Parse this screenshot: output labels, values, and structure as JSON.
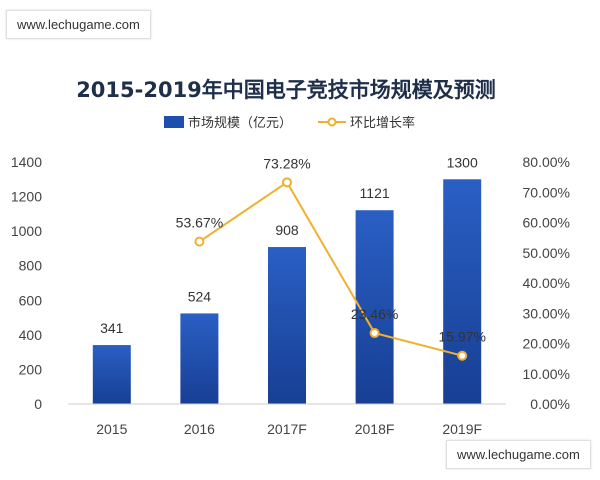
{
  "watermark_top": "www.lechugame.com",
  "watermark_bottom": "www.lechugame.com",
  "chart_data": {
    "type": "bar",
    "title": "2015-2019年中国电子竞技市场规模及预测",
    "categories": [
      "2015",
      "2016",
      "2017F",
      "2018F",
      "2019F"
    ],
    "series": [
      {
        "name": "市场规模（亿元）",
        "type": "bar",
        "axis": "left",
        "values": [
          341,
          524,
          908,
          1121,
          1300
        ],
        "labels": [
          "341",
          "524",
          "908",
          "1121",
          "1300"
        ],
        "color": "#1f4fae"
      },
      {
        "name": "环比增长率",
        "type": "line",
        "axis": "right",
        "values": [
          null,
          53.67,
          73.28,
          23.46,
          15.97
        ],
        "labels": [
          "",
          "53.67%",
          "73.28%",
          "23.46%",
          "15.97%"
        ],
        "color": "#f0b030"
      }
    ],
    "y_left": {
      "min": 0,
      "max": 1400,
      "ticks": [
        "0",
        "200",
        "400",
        "600",
        "800",
        "1000",
        "1200",
        "1400"
      ]
    },
    "y_right": {
      "min": 0,
      "max": 80,
      "ticks": [
        "0.00%",
        "10.00%",
        "20.00%",
        "30.00%",
        "40.00%",
        "50.00%",
        "60.00%",
        "70.00%",
        "80.00%"
      ]
    },
    "legend_position": "top",
    "grid": false
  }
}
